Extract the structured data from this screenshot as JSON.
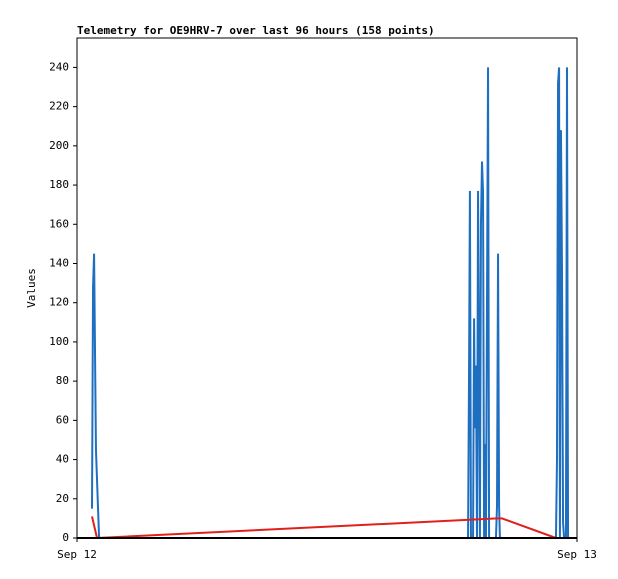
{
  "chart_data": {
    "type": "line",
    "title": "Telemetry for OE9HRV-7 over last 96 hours (158 points)",
    "y_label": "Values",
    "xlim": [
      0,
      24
    ],
    "xticks": [
      {
        "value": 0,
        "label": "Sep 12"
      },
      {
        "value": 24,
        "label": "Sep 13"
      }
    ],
    "ylim": [
      0,
      255
    ],
    "yticks": [
      0,
      20,
      40,
      60,
      80,
      100,
      120,
      140,
      160,
      180,
      200,
      220,
      240
    ],
    "series": [
      {
        "color": "#1f6fc0",
        "x": [
          0.72,
          0.77,
          0.82,
          0.86,
          0.91,
          1.01,
          1.06,
          18.77,
          18.82,
          18.86,
          18.91,
          19.01,
          19.06,
          19.1,
          19.15,
          19.2,
          19.25,
          19.3,
          19.34,
          19.39,
          19.44,
          19.49,
          19.54,
          19.58,
          19.63,
          19.73,
          19.78,
          20.11,
          20.16,
          20.21,
          20.26,
          20.3,
          22.99,
          23.04,
          23.09,
          23.14,
          23.18,
          23.23,
          23.28,
          23.33,
          23.38,
          23.47,
          23.52,
          23.57
        ],
        "values": [
          15,
          128,
          145,
          100,
          45,
          15,
          0,
          0,
          88,
          177,
          0,
          0,
          112,
          56,
          88,
          0,
          177,
          80,
          0,
          160,
          192,
          176,
          0,
          48,
          0,
          240,
          0,
          0,
          16,
          145,
          16,
          0,
          0,
          40,
          232,
          240,
          0,
          208,
          136,
          8,
          0,
          0,
          240,
          0
        ]
      },
      {
        "color": "#e0201a",
        "x": [
          0.72,
          0.96,
          20.16,
          20.4,
          22.99
        ],
        "values": [
          11,
          0,
          10,
          10,
          0
        ]
      }
    ]
  }
}
